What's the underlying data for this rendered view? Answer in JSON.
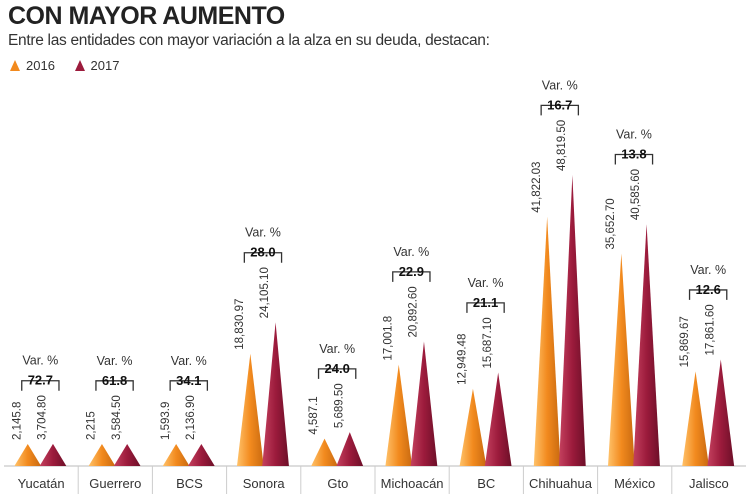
{
  "chart_data": {
    "type": "bar",
    "title": "CON MAYOR AUMENTO",
    "subtitle": "Entre las entidades con mayor variación a la alza en su deuda, destacan:",
    "categories": [
      "Yucatán",
      "Guerrero",
      "BCS",
      "Sonora",
      "Gto",
      "Michoacán",
      "BC",
      "Chihuahua",
      "México",
      "Jalisco"
    ],
    "series": [
      {
        "name": "2016",
        "color": "#f28a1e",
        "values": [
          2145.8,
          2215,
          1593.9,
          18830.97,
          4587.1,
          17001.8,
          12949.48,
          41822.03,
          35652.7,
          15869.67
        ],
        "labels": [
          "2,145.8",
          "2,215",
          "1,593.9",
          "18,830.97",
          "4,587.1",
          "17,001.8",
          "12,949.48",
          "41,822.03",
          "35,652.70",
          "15,869.67"
        ]
      },
      {
        "name": "2017",
        "color": "#9c1b3c",
        "values": [
          3704.8,
          3584.5,
          2136.9,
          24105.1,
          5689.5,
          20892.6,
          15687.1,
          48819.5,
          40585.6,
          17861.6
        ],
        "labels": [
          "3,704.80",
          "3,584.50",
          "2,136.90",
          "24,105.10",
          "5,689.50",
          "20,892.60",
          "15,687.10",
          "48,819.50",
          "40,585.60",
          "17,861.60"
        ]
      }
    ],
    "variation": {
      "label": "Var. %",
      "values": [
        "72.7",
        "61.8",
        "34.1",
        "28.0",
        "24.0",
        "22.9",
        "21.1",
        "16.7",
        "13.8",
        "12.6"
      ]
    },
    "legend": "top-left",
    "grid": false
  }
}
